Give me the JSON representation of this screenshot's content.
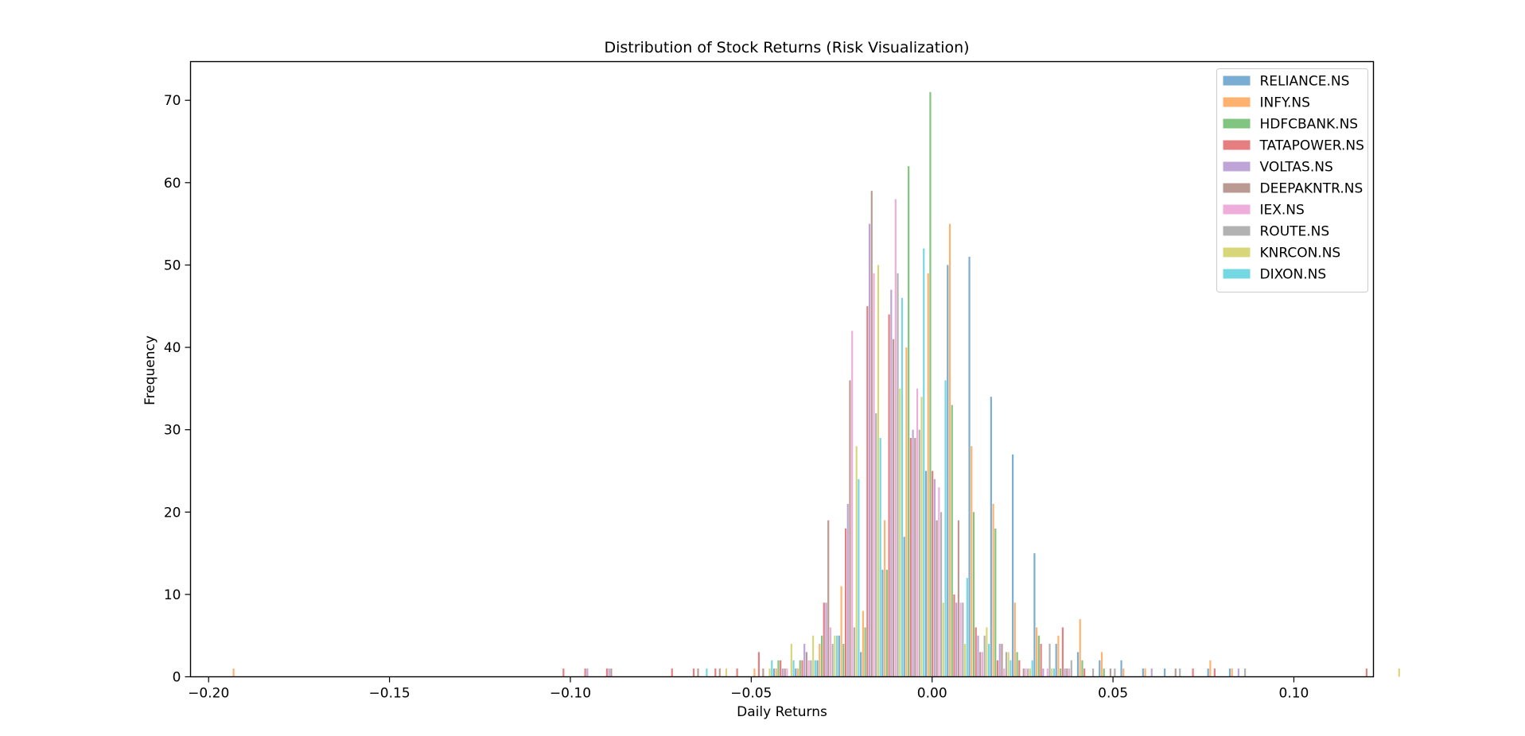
{
  "chart_data": {
    "type": "bar",
    "title": "Distribution of Stock Returns (Risk Visualization)",
    "xlabel": "Daily Returns",
    "ylabel": "Frequency",
    "xlim": [
      -0.205,
      0.122
    ],
    "ylim": [
      0,
      74.7
    ],
    "x_ticks": [
      -0.2,
      -0.15,
      -0.1,
      -0.05,
      0.0,
      0.05,
      0.1
    ],
    "x_tick_labels": [
      "−0.20",
      "−0.15",
      "−0.10",
      "−0.05",
      "0.00",
      "0.05",
      "0.10"
    ],
    "y_ticks": [
      0,
      10,
      20,
      30,
      40,
      50,
      60,
      70
    ],
    "y_tick_labels": [
      "0",
      "10",
      "20",
      "30",
      "40",
      "50",
      "60",
      "70"
    ],
    "grid": false,
    "legend_position": "top-right",
    "bin_edges_start": -0.2,
    "bin_width": 0.006,
    "series": [
      {
        "name": "RELIANCE.NS",
        "color": "#1f77b4",
        "values": [
          0,
          0,
          0,
          0,
          0,
          0,
          0,
          0,
          0,
          0,
          0,
          0,
          0,
          0,
          0,
          0,
          0,
          0,
          0,
          0,
          0,
          0,
          0,
          0,
          0,
          0,
          1,
          1,
          2,
          5,
          3,
          13,
          17,
          25,
          50,
          51,
          34,
          27,
          15,
          4,
          3,
          2,
          2,
          1,
          1,
          0,
          1,
          1,
          0,
          0,
          0,
          0,
          0,
          0,
          0
        ]
      },
      {
        "name": "INFY.NS",
        "color": "#ff7f0e",
        "values": [
          0,
          1,
          0,
          0,
          0,
          0,
          0,
          0,
          0,
          0,
          0,
          0,
          0,
          0,
          0,
          0,
          0,
          0,
          0,
          0,
          0,
          0,
          0,
          0,
          0,
          1,
          1,
          1,
          4,
          11,
          8,
          19,
          40,
          49,
          55,
          28,
          21,
          9,
          6,
          5,
          7,
          3,
          1,
          1,
          0,
          0,
          2,
          1,
          0,
          0,
          0,
          0,
          0,
          0,
          0
        ]
      },
      {
        "name": "HDFCBANK.NS",
        "color": "#2ca02c",
        "values": [
          0,
          0,
          0,
          0,
          0,
          0,
          0,
          0,
          0,
          0,
          0,
          0,
          0,
          0,
          0,
          0,
          0,
          0,
          0,
          0,
          0,
          0,
          0,
          0,
          0,
          0,
          2,
          2,
          5,
          4,
          6,
          13,
          62,
          71,
          33,
          20,
          18,
          3,
          5,
          1,
          2,
          1,
          0,
          0,
          0,
          0,
          0,
          0,
          0,
          0,
          0,
          0,
          0,
          0,
          0
        ]
      },
      {
        "name": "TATAPOWER.NS",
        "color": "#d62728",
        "values": [
          0,
          0,
          0,
          0,
          0,
          0,
          0,
          0,
          0,
          0,
          0,
          0,
          0,
          0,
          0,
          0,
          1,
          1,
          1,
          0,
          0,
          1,
          1,
          1,
          1,
          3,
          2,
          2,
          9,
          18,
          45,
          44,
          29,
          25,
          10,
          6,
          2,
          2,
          4,
          6,
          1,
          0,
          0,
          0,
          0,
          1,
          1,
          0,
          0,
          0,
          0,
          0,
          0,
          1,
          0
        ]
      },
      {
        "name": "VOLTAS.NS",
        "color": "#9467bd",
        "values": [
          0,
          0,
          0,
          0,
          0,
          0,
          0,
          0,
          0,
          0,
          0,
          0,
          0,
          0,
          0,
          0,
          0,
          1,
          1,
          0,
          0,
          0,
          0,
          0,
          0,
          0,
          1,
          4,
          9,
          21,
          55,
          47,
          30,
          24,
          9,
          5,
          4,
          0,
          1,
          1,
          0,
          0,
          0,
          1,
          0,
          0,
          0,
          1,
          0,
          0,
          0,
          0,
          0,
          0,
          0
        ]
      },
      {
        "name": "DEEPAKNTR.NS",
        "color": "#8c564b",
        "values": [
          0,
          0,
          0,
          0,
          0,
          0,
          0,
          0,
          0,
          0,
          0,
          0,
          0,
          0,
          0,
          0,
          0,
          0,
          1,
          0,
          0,
          0,
          1,
          1,
          0,
          1,
          1,
          3,
          19,
          36,
          59,
          41,
          29,
          19,
          19,
          3,
          4,
          1,
          0,
          1,
          0,
          1,
          0,
          0,
          1,
          0,
          0,
          0,
          0,
          0,
          0,
          0,
          0,
          0,
          0
        ]
      },
      {
        "name": "IEX.NS",
        "color": "#e377c2",
        "values": [
          0,
          0,
          0,
          0,
          0,
          0,
          0,
          0,
          0,
          0,
          0,
          0,
          0,
          0,
          0,
          0,
          0,
          0,
          0,
          0,
          0,
          0,
          0,
          0,
          0,
          0,
          1,
          2,
          6,
          42,
          49,
          58,
          35,
          23,
          9,
          3,
          1,
          1,
          1,
          1,
          0,
          0,
          0,
          0,
          0,
          0,
          0,
          0,
          0,
          0,
          0,
          0,
          0,
          0,
          0
        ]
      },
      {
        "name": "ROUTE.NS",
        "color": "#7f7f7f",
        "values": [
          0,
          0,
          0,
          0,
          0,
          0,
          0,
          0,
          0,
          0,
          0,
          0,
          0,
          0,
          0,
          0,
          0,
          0,
          0,
          0,
          0,
          0,
          0,
          0,
          0,
          0,
          0,
          2,
          4,
          6,
          32,
          49,
          30,
          20,
          9,
          5,
          3,
          1,
          4,
          2,
          1,
          1,
          0,
          0,
          1,
          0,
          0,
          1,
          0,
          0,
          0,
          0,
          0,
          0,
          0
        ]
      },
      {
        "name": "KNRCON.NS",
        "color": "#bcbd22",
        "values": [
          0,
          0,
          0,
          0,
          0,
          0,
          0,
          0,
          0,
          0,
          0,
          0,
          0,
          0,
          0,
          0,
          0,
          0,
          0,
          0,
          0,
          0,
          0,
          1,
          0,
          1,
          4,
          5,
          5,
          28,
          50,
          35,
          34,
          9,
          4,
          6,
          3,
          1,
          1,
          0,
          0,
          0,
          0,
          0,
          0,
          0,
          0,
          0,
          0,
          0,
          0,
          0,
          0,
          0,
          1
        ]
      },
      {
        "name": "DIXON.NS",
        "color": "#17becf",
        "values": [
          0,
          0,
          0,
          0,
          0,
          0,
          0,
          0,
          0,
          0,
          0,
          0,
          0,
          0,
          0,
          0,
          0,
          0,
          0,
          0,
          0,
          0,
          1,
          0,
          0,
          2,
          2,
          2,
          5,
          24,
          29,
          46,
          52,
          36,
          12,
          4,
          2,
          2,
          1,
          0,
          0,
          0,
          0,
          0,
          0,
          0,
          0,
          0,
          0,
          0,
          0,
          0,
          0,
          0,
          0
        ]
      }
    ]
  }
}
